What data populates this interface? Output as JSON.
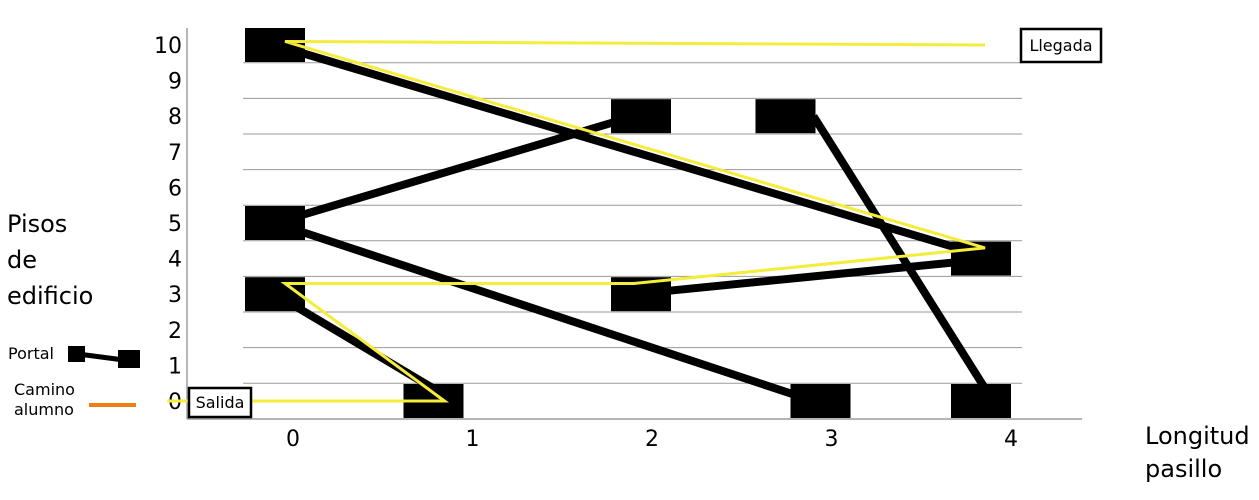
{
  "axis": {
    "y_label_lines": [
      "Pisos",
      "de",
      "edificio"
    ],
    "x_label_lines": [
      "Longitud",
      "pasillo"
    ],
    "y_ticks": [
      "0",
      "1",
      "2",
      "3",
      "4",
      "5",
      "6",
      "7",
      "8",
      "9",
      "10"
    ],
    "x_ticks": [
      "0",
      "1",
      "2",
      "3",
      "4"
    ],
    "y_range": [
      0,
      10
    ],
    "x_range": [
      0,
      4
    ]
  },
  "boxes": {
    "start": "Salida",
    "finish": "Llegada"
  },
  "legend": {
    "portal": "Portal",
    "camino_lines": [
      "Camino",
      "alumno"
    ]
  },
  "colors": {
    "portal": "#000000",
    "path": "#f5ec3c",
    "legend_path": "#f07f13",
    "grid": "#9a9a9a"
  },
  "chart_data": {
    "type": "diagram",
    "grid": true,
    "portal_blocks": [
      {
        "x": 0,
        "y": 10
      },
      {
        "x": 2,
        "y": 8
      },
      {
        "x": 3,
        "y": 8
      },
      {
        "x": 0,
        "y": 5
      },
      {
        "x": 4,
        "y": 4
      },
      {
        "x": 0,
        "y": 3
      },
      {
        "x": 2,
        "y": 3
      },
      {
        "x": 1,
        "y": 0
      },
      {
        "x": 3,
        "y": 0
      },
      {
        "x": 4,
        "y": 0
      }
    ],
    "portals": [
      {
        "from": {
          "x": 0,
          "y": 10
        },
        "to": {
          "x": 4,
          "y": 4
        }
      },
      {
        "from": {
          "x": 0,
          "y": 5
        },
        "to": {
          "x": 2,
          "y": 8
        }
      },
      {
        "from": {
          "x": 0,
          "y": 5
        },
        "to": {
          "x": 3,
          "y": 0
        }
      },
      {
        "from": {
          "x": 0,
          "y": 3
        },
        "to": {
          "x": 1,
          "y": 0
        }
      },
      {
        "from": {
          "x": 2,
          "y": 3
        },
        "to": {
          "x": 4,
          "y": 4
        }
      },
      {
        "from": {
          "x": 3,
          "y": 8
        },
        "to": {
          "x": 4,
          "y": 0
        }
      }
    ],
    "student_path": [
      {
        "x": -0.6,
        "y": 0
      },
      {
        "x": 1,
        "y": 0
      },
      {
        "x": 0,
        "y": 3.3
      },
      {
        "x": 2,
        "y": 3.3
      },
      {
        "x": 4,
        "y": 4.3
      },
      {
        "x": 0,
        "y": 10.1
      },
      {
        "x": 4,
        "y": 10
      }
    ]
  }
}
